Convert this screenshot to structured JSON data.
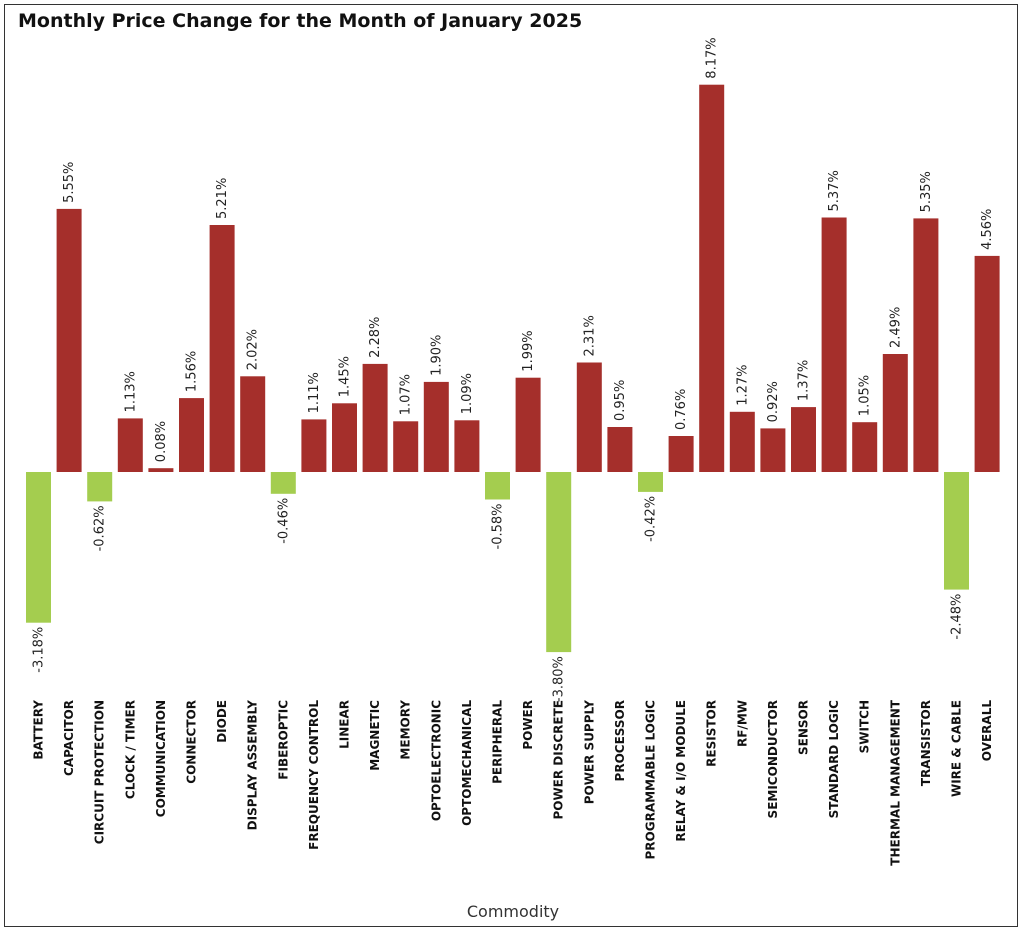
{
  "chart_data": {
    "type": "bar",
    "title": "Monthly Price Change for the Month of January 2025",
    "xlabel": "Commodity",
    "ylabel": "",
    "categories": [
      "BATTERY",
      "CAPACITOR",
      "CIRCUIT PROTECTION",
      "CLOCK / TIMER",
      "COMMUNICATION",
      "CONNECTOR",
      "DIODE",
      "DISPLAY ASSEMBLY",
      "FIBEROPTIC",
      "FREQUENCY CONTROL",
      "LINEAR",
      "MAGNETIC",
      "MEMORY",
      "OPTOELECTRONIC",
      "OPTOMECHANICAL",
      "PERIPHERAL",
      "POWER",
      "POWER DISCRETE",
      "POWER SUPPLY",
      "PROCESSOR",
      "PROGRAMMABLE LOGIC",
      "RELAY & I/O MODULE",
      "RESISTOR",
      "RF/MW",
      "SEMICONDUCTOR",
      "SENSOR",
      "STANDARD LOGIC",
      "SWITCH",
      "THERMAL MANAGEMENT",
      "TRANSISTOR",
      "WIRE & CABLE",
      "OVERALL"
    ],
    "values": [
      -3.18,
      5.55,
      -0.62,
      1.13,
      0.08,
      1.56,
      5.21,
      2.02,
      -0.46,
      1.11,
      1.45,
      2.28,
      1.07,
      1.9,
      1.09,
      -0.58,
      1.99,
      -3.8,
      2.31,
      0.95,
      -0.42,
      0.76,
      8.17,
      1.27,
      0.92,
      1.37,
      5.37,
      1.05,
      2.49,
      5.35,
      -2.48,
      4.56
    ],
    "labels": [
      "-3.18%",
      "5.55%",
      "-0.62%",
      "1.13%",
      "0.08%",
      "1.56%",
      "5.21%",
      "2.02%",
      "-0.46%",
      "1.11%",
      "1.45%",
      "2.28%",
      "1.07%",
      "1.90%",
      "1.09%",
      "-0.58%",
      "1.99%",
      "-3.80%",
      "2.31%",
      "0.95%",
      "-0.42%",
      "0.76%",
      "8.17%",
      "1.27%",
      "0.92%",
      "1.37%",
      "5.37%",
      "1.05%",
      "2.49%",
      "5.35%",
      "-2.48%",
      "4.56%"
    ],
    "colors": {
      "positive": "#a52f2b",
      "negative": "#a4cd4f"
    },
    "grid": false,
    "legend": "none"
  }
}
